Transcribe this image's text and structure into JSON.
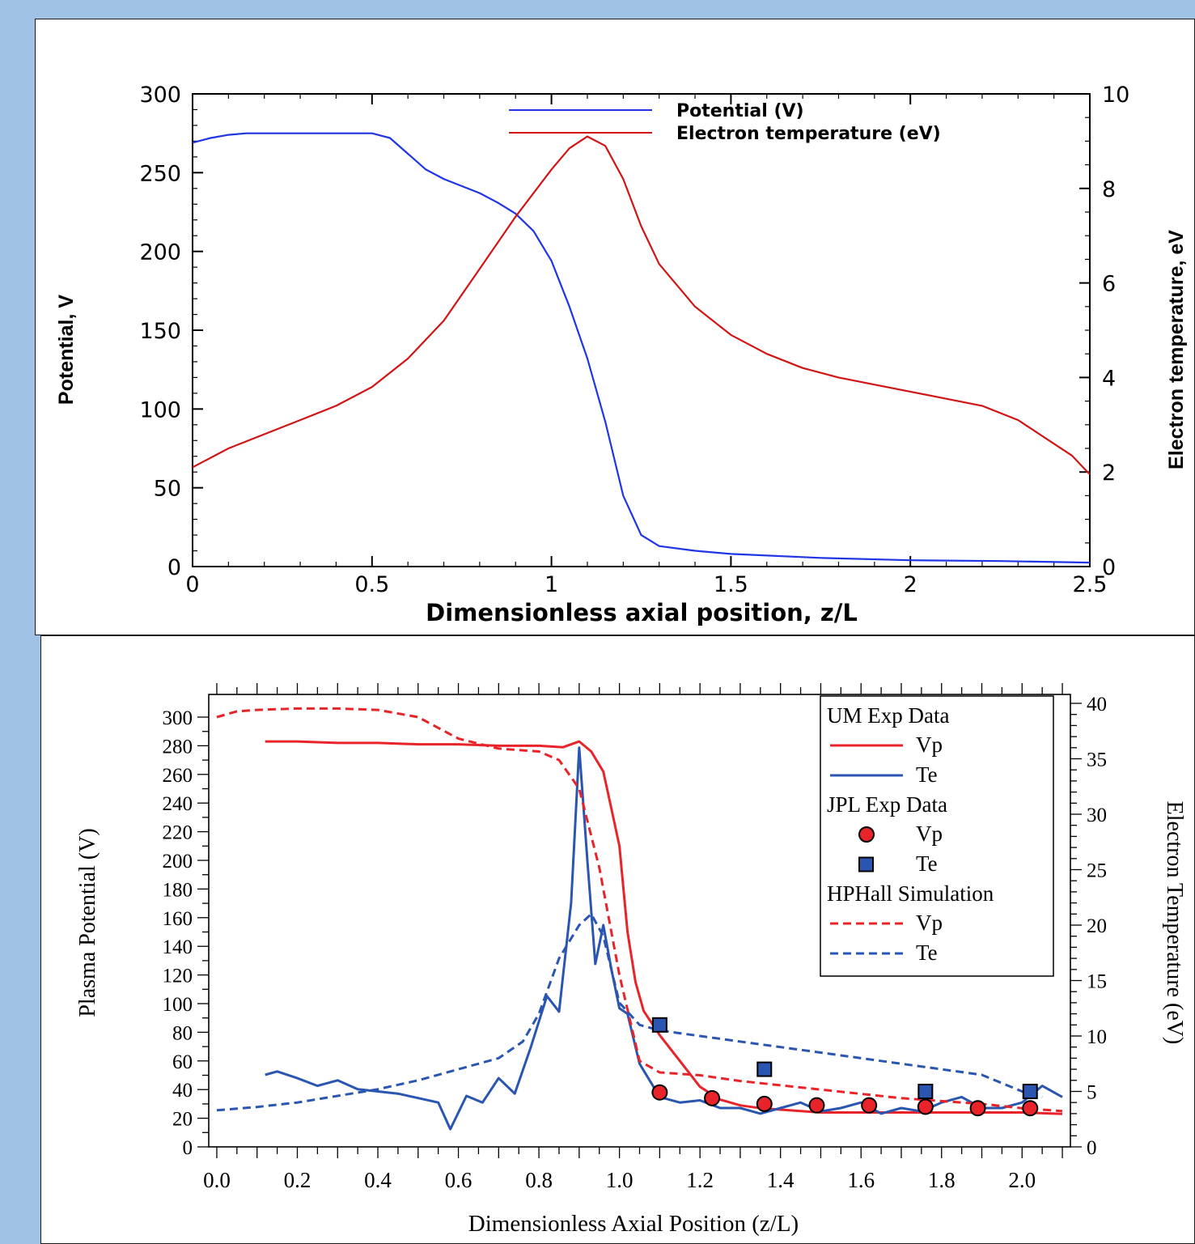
{
  "chart_data": [
    {
      "type": "line",
      "title": "",
      "xlabel": "Dimensionless axial position, z/L",
      "ylabel_left": "Potential, V",
      "ylabel_right": "Electron temperature, eV",
      "xlim": [
        0,
        2.5
      ],
      "ylim_left": [
        0,
        300
      ],
      "ylim_right": [
        0,
        10
      ],
      "x_ticks": [
        0,
        0.5,
        1,
        1.5,
        2,
        2.5
      ],
      "x_tick_labels": [
        "0",
        "0.5",
        "1",
        "1.5",
        "2",
        "2.5"
      ],
      "y_left_ticks": [
        0,
        50,
        100,
        150,
        200,
        250,
        300
      ],
      "y_left_tick_labels": [
        "0",
        "50",
        "100",
        "150",
        "200",
        "250",
        "300"
      ],
      "y_right_ticks": [
        0,
        2,
        4,
        6,
        8,
        10
      ],
      "y_right_tick_labels": [
        "0",
        "2",
        "4",
        "6",
        "8",
        "10"
      ],
      "grid": false,
      "legend_position": "top-right",
      "series": [
        {
          "name": "Potential (V)",
          "axis": "left",
          "color": "#1f35e6",
          "style": "solid",
          "x": [
            0,
            0.05,
            0.1,
            0.15,
            0.2,
            0.3,
            0.4,
            0.5,
            0.55,
            0.6,
            0.65,
            0.7,
            0.8,
            0.85,
            0.9,
            0.95,
            1.0,
            1.05,
            1.1,
            1.15,
            1.2,
            1.25,
            1.3,
            1.4,
            1.5,
            1.75,
            2.0,
            2.25,
            2.5
          ],
          "y": [
            269,
            272,
            274,
            275,
            275,
            275,
            275,
            275,
            272,
            262,
            252,
            246,
            237,
            231,
            224,
            213,
            194,
            165,
            132,
            92,
            45,
            20,
            13,
            10,
            8,
            5.5,
            4,
            3.5,
            2.5
          ]
        },
        {
          "name": "Electron temperature (eV)",
          "axis": "right",
          "color": "#d11414",
          "style": "solid",
          "x": [
            0,
            0.1,
            0.2,
            0.3,
            0.4,
            0.5,
            0.6,
            0.7,
            0.8,
            0.9,
            1.0,
            1.05,
            1.1,
            1.15,
            1.2,
            1.25,
            1.3,
            1.4,
            1.5,
            1.6,
            1.7,
            1.8,
            1.9,
            2.0,
            2.1,
            2.2,
            2.3,
            2.4,
            2.45,
            2.5
          ],
          "y": [
            2.1,
            2.5,
            2.8,
            3.1,
            3.4,
            3.8,
            4.4,
            5.2,
            6.3,
            7.4,
            8.4,
            8.85,
            9.1,
            8.9,
            8.2,
            7.2,
            6.4,
            5.5,
            4.9,
            4.5,
            4.2,
            4.0,
            3.85,
            3.7,
            3.55,
            3.4,
            3.1,
            2.6,
            2.35,
            1.95
          ]
        }
      ]
    },
    {
      "type": "line",
      "title": "",
      "xlabel": "Dimensionless Axial Position (z/L)",
      "ylabel_left": "Plasma Potential (V)",
      "ylabel_right": "Electron Temperature (eV)",
      "xlim": [
        -0.02,
        2.12
      ],
      "ylim_left": [
        0,
        300
      ],
      "ylim_right": [
        0,
        40
      ],
      "x_ticks": [
        0.0,
        0.2,
        0.4,
        0.6,
        0.8,
        1.0,
        1.2,
        1.4,
        1.6,
        1.8,
        2.0
      ],
      "x_tick_labels": [
        "0.0",
        "0.2",
        "0.4",
        "0.6",
        "0.8",
        "1.0",
        "1.2",
        "1.4",
        "1.6",
        "1.8",
        "2.0"
      ],
      "y_left_ticks": [
        0,
        20,
        40,
        60,
        80,
        100,
        120,
        140,
        160,
        180,
        200,
        220,
        240,
        260,
        280,
        300
      ],
      "y_left_tick_labels": [
        "0",
        "20",
        "40",
        "60",
        "80",
        "100",
        "120",
        "140",
        "160",
        "180",
        "200",
        "220",
        "240",
        "260",
        "280",
        "300"
      ],
      "y_right_ticks": [
        0,
        5,
        10,
        15,
        20,
        25,
        30,
        35,
        40
      ],
      "y_right_tick_labels": [
        "0",
        "5",
        "10",
        "15",
        "20",
        "25",
        "30",
        "35",
        "40"
      ],
      "grid": false,
      "legend_position": "top-right",
      "legend_groups": [
        "UM Exp Data",
        "JPL Exp Data",
        "HPHall Simulation"
      ],
      "series": [
        {
          "name": "Vp",
          "group": "UM Exp Data",
          "axis": "left",
          "color": "#e8242a",
          "style": "solid",
          "x": [
            0.12,
            0.2,
            0.3,
            0.4,
            0.5,
            0.6,
            0.7,
            0.8,
            0.86,
            0.9,
            0.93,
            0.96,
            0.98,
            1.0,
            1.02,
            1.04,
            1.06,
            1.1,
            1.15,
            1.2,
            1.25,
            1.3,
            1.35,
            1.4,
            1.5,
            1.6,
            1.7,
            1.8,
            1.9,
            2.0,
            2.1
          ],
          "y": [
            283,
            283,
            282,
            282,
            281,
            281,
            280,
            280,
            279,
            283,
            276,
            262,
            236,
            210,
            150,
            115,
            95,
            78,
            60,
            42,
            33,
            29,
            27,
            26,
            24,
            24,
            24,
            24,
            24,
            24,
            23
          ]
        },
        {
          "name": "Te",
          "group": "UM Exp Data",
          "axis": "right",
          "color": "#2a55b0",
          "style": "solid",
          "x": [
            0.12,
            0.15,
            0.2,
            0.25,
            0.3,
            0.35,
            0.4,
            0.45,
            0.5,
            0.55,
            0.58,
            0.62,
            0.66,
            0.7,
            0.74,
            0.78,
            0.82,
            0.85,
            0.88,
            0.9,
            0.92,
            0.94,
            0.96,
            0.98,
            1.0,
            1.02,
            1.05,
            1.1,
            1.15,
            1.2,
            1.25,
            1.3,
            1.35,
            1.4,
            1.45,
            1.5,
            1.55,
            1.6,
            1.65,
            1.7,
            1.75,
            1.8,
            1.85,
            1.9,
            1.95,
            2.0,
            2.05,
            2.1
          ],
          "y": [
            6.5,
            6.8,
            6.2,
            5.5,
            6.0,
            5.2,
            5.0,
            4.8,
            4.4,
            4.0,
            1.6,
            4.6,
            4.0,
            6.2,
            4.8,
            9.0,
            13.6,
            12.2,
            22.0,
            36.0,
            26.0,
            16.5,
            20.0,
            16.0,
            12.5,
            12.0,
            7.5,
            4.5,
            4.0,
            4.2,
            3.5,
            3.5,
            3.0,
            3.5,
            4.0,
            3.2,
            3.5,
            4.0,
            3.0,
            3.5,
            3.2,
            4.0,
            4.5,
            3.5,
            3.5,
            4.0,
            5.5,
            4.5
          ]
        },
        {
          "name": "Vp",
          "group": "JPL Exp Data",
          "axis": "left",
          "color": "#e8242a",
          "style": "marker-circle",
          "x": [
            1.1,
            1.23,
            1.36,
            1.49,
            1.62,
            1.76,
            1.89,
            2.02
          ],
          "y": [
            38,
            34,
            30,
            29,
            29,
            28,
            27,
            27
          ]
        },
        {
          "name": "Te",
          "group": "JPL Exp Data",
          "axis": "right",
          "color": "#2a55b0",
          "style": "marker-square",
          "x": [
            1.1,
            1.36,
            1.76,
            2.02
          ],
          "y": [
            11.0,
            7.0,
            5.0,
            5.0
          ]
        },
        {
          "name": "Vp",
          "group": "HPHall Simulation",
          "axis": "left",
          "color": "#e8242a",
          "style": "dashed",
          "x": [
            0.0,
            0.05,
            0.1,
            0.2,
            0.3,
            0.4,
            0.5,
            0.6,
            0.7,
            0.8,
            0.85,
            0.9,
            0.95,
            1.0,
            1.05,
            1.1,
            1.2,
            1.3,
            1.4,
            1.5,
            1.6,
            1.7,
            1.8,
            1.9,
            2.0,
            2.1
          ],
          "y": [
            300,
            304,
            305,
            306,
            306,
            305,
            300,
            285,
            278,
            276,
            270,
            250,
            195,
            120,
            60,
            52,
            50,
            46,
            43,
            40,
            37,
            34,
            32,
            30,
            27,
            25
          ]
        },
        {
          "name": "Te",
          "group": "HPHall Simulation",
          "axis": "right",
          "color": "#2a55b0",
          "style": "dashed",
          "x": [
            0.0,
            0.1,
            0.2,
            0.3,
            0.4,
            0.5,
            0.6,
            0.7,
            0.76,
            0.8,
            0.85,
            0.9,
            0.93,
            0.96,
            1.0,
            1.05,
            1.1,
            1.2,
            1.3,
            1.4,
            1.5,
            1.6,
            1.7,
            1.8,
            1.9,
            2.0,
            2.05
          ],
          "y": [
            3.3,
            3.6,
            4.0,
            4.6,
            5.2,
            6.0,
            7.0,
            8.0,
            9.5,
            12.0,
            17.0,
            20.0,
            21.0,
            19.0,
            13.0,
            11.0,
            10.5,
            10.0,
            9.5,
            9.0,
            8.5,
            8.0,
            7.5,
            7.0,
            6.5,
            5.0,
            4.5
          ]
        }
      ]
    }
  ]
}
